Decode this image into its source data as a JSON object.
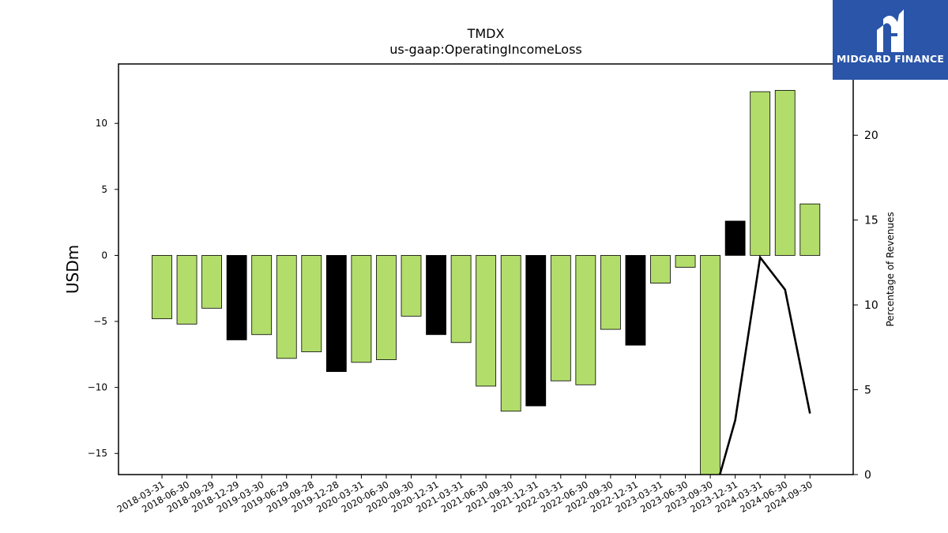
{
  "chart_data": {
    "type": "bar",
    "title": "TMDX",
    "subtitle": "us-gaap:OperatingIncomeLoss",
    "ylabel": "USDm",
    "y2label": "Percentage of Revenues",
    "ylim": [
      -16.6,
      14.5
    ],
    "y2lim": [
      0,
      24.2
    ],
    "yticks": [
      -15,
      -10,
      -5,
      0,
      5,
      10
    ],
    "y2ticks": [
      0,
      5,
      10,
      15,
      20
    ],
    "bar_colors": {
      "default": "#b2dd6b",
      "q4": "#000000"
    },
    "line_color": "#000000",
    "categories": [
      "2018-03-31",
      "2018-06-30",
      "2018-09-29",
      "2018-12-29",
      "2019-03-30",
      "2019-06-29",
      "2019-09-28",
      "2019-12-28",
      "2020-03-31",
      "2020-06-30",
      "2020-09-30",
      "2020-12-31",
      "2021-03-31",
      "2021-06-30",
      "2021-09-30",
      "2021-12-31",
      "2022-03-31",
      "2022-06-30",
      "2022-09-30",
      "2022-12-31",
      "2023-03-31",
      "2023-06-30",
      "2023-09-30",
      "2023-12-31",
      "2024-03-31",
      "2024-06-30",
      "2024-09-30"
    ],
    "values": [
      -4.8,
      -5.2,
      -4.0,
      -6.4,
      -6.0,
      -7.8,
      -7.3,
      -8.8,
      -8.1,
      -7.9,
      -4.6,
      -6.0,
      -6.6,
      -9.9,
      -11.8,
      -11.4,
      -9.5,
      -9.8,
      -5.6,
      -6.8,
      -2.1,
      -0.9,
      -16.6,
      2.6,
      12.4,
      12.5,
      3.9
    ],
    "highlight": [
      false,
      false,
      false,
      true,
      false,
      false,
      false,
      true,
      false,
      false,
      false,
      true,
      false,
      false,
      false,
      true,
      false,
      false,
      false,
      true,
      false,
      false,
      false,
      true,
      false,
      false,
      false
    ],
    "line_series": {
      "start_index": 22,
      "values": [
        -2.0,
        3.2,
        12.8,
        10.9,
        3.6
      ]
    }
  },
  "brand": {
    "name": "MIDGARD FINANCE",
    "color": "#2a55a8"
  }
}
